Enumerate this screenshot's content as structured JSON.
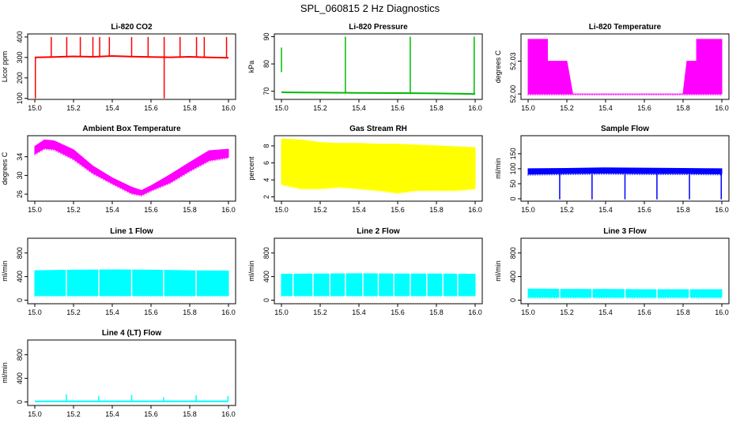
{
  "figure": {
    "title": "SPL_060815  2 Hz Diagnostics"
  },
  "chart_data": [
    {
      "type": "line",
      "title": "Li-820 CO2",
      "ylabel": "Licor ppm",
      "color": "#ff0000",
      "xlim": [
        15.0,
        16.0
      ],
      "xticks": [
        "15.0",
        "15.2",
        "15.4",
        "15.6",
        "15.8",
        "16.0"
      ],
      "ylim": [
        95,
        415
      ],
      "yticks": [
        "100",
        "200",
        "300",
        "400"
      ],
      "series": [
        {
          "name": "CO2",
          "x": [
            15.0,
            15.1,
            15.2,
            15.3,
            15.4,
            15.5,
            15.6,
            15.7,
            15.8,
            15.9,
            16.0
          ],
          "values": [
            300,
            302,
            305,
            303,
            307,
            304,
            302,
            301,
            303,
            300,
            298
          ]
        }
      ],
      "spikes": [
        {
          "x": 15.003,
          "from": 100,
          "to": 300
        },
        {
          "x": 15.085,
          "to": 400
        },
        {
          "x": 15.165,
          "to": 400
        },
        {
          "x": 15.235,
          "to": 400
        },
        {
          "x": 15.3,
          "to": 400
        },
        {
          "x": 15.335,
          "to": 400
        },
        {
          "x": 15.385,
          "to": 400
        },
        {
          "x": 15.5,
          "to": 400
        },
        {
          "x": 15.585,
          "to": 400
        },
        {
          "x": 15.668,
          "to": 400
        },
        {
          "x": 15.668,
          "from": 100,
          "to": 300
        },
        {
          "x": 15.75,
          "to": 400
        },
        {
          "x": 15.835,
          "to": 400
        },
        {
          "x": 15.875,
          "to": 400
        },
        {
          "x": 15.99,
          "to": 400
        }
      ]
    },
    {
      "type": "line",
      "title": "Li-820 Pressure",
      "ylabel": "kPa",
      "color": "#00bb00",
      "xlim": [
        15.0,
        16.0
      ],
      "xticks": [
        "15.0",
        "15.2",
        "15.4",
        "15.6",
        "15.8",
        "16.0"
      ],
      "ylim": [
        67,
        91
      ],
      "yticks": [
        "70",
        "80",
        "90"
      ],
      "series": [
        {
          "name": "Pressure",
          "x": [
            15.0,
            15.2,
            15.4,
            15.6,
            15.8,
            16.0
          ],
          "values": [
            69.6,
            69.5,
            69.4,
            69.3,
            69.2,
            69.0
          ]
        }
      ],
      "spikes": [
        {
          "x": 15.0,
          "from": 77,
          "to": 86
        },
        {
          "x": 15.33,
          "from": 69.5,
          "to": 90
        },
        {
          "x": 15.665,
          "from": 69.4,
          "to": 90
        },
        {
          "x": 15.995,
          "from": 69.0,
          "to": 90
        }
      ]
    },
    {
      "type": "band",
      "title": "Li-820 Temperature",
      "ylabel": "degrees C",
      "color": "#ff00ff",
      "xlim": [
        15.0,
        16.0
      ],
      "xticks": [
        "15.0",
        "15.2",
        "15.4",
        "15.6",
        "15.8",
        "16.0"
      ],
      "ylim": [
        51.995,
        52.055
      ],
      "yticks": [
        "52.00",
        "52.03"
      ],
      "series": [
        {
          "name": "Temperature",
          "x": [
            15.0,
            15.07,
            15.07,
            15.1,
            15.1,
            15.13,
            15.2,
            15.2,
            15.23,
            15.8,
            15.82,
            15.82,
            15.87,
            15.87,
            16.0
          ],
          "lo": [
            52.0,
            52.0,
            52.0,
            52.0,
            52.0,
            52.0,
            52.0,
            52.0,
            52.0,
            52.0,
            52.0,
            52.0,
            52.0,
            52.0,
            52.0
          ],
          "hi": [
            52.05,
            52.05,
            52.05,
            52.05,
            52.03,
            52.03,
            52.03,
            52.03,
            52.0,
            52.0,
            52.03,
            52.03,
            52.03,
            52.05,
            52.05
          ]
        }
      ]
    },
    {
      "type": "band",
      "title": "Ambient Box Temperature",
      "ylabel": "degrees C",
      "color": "#ff00ff",
      "xlim": [
        15.0,
        16.0
      ],
      "xticks": [
        "15.0",
        "15.2",
        "15.4",
        "15.6",
        "15.8",
        "16.0"
      ],
      "ylim": [
        24.5,
        38.5
      ],
      "yticks": [
        "26",
        "30",
        "34"
      ],
      "series": [
        {
          "name": "Ambient",
          "x": [
            15.0,
            15.05,
            15.1,
            15.2,
            15.3,
            15.4,
            15.5,
            15.55,
            15.6,
            15.7,
            15.8,
            15.9,
            16.0
          ],
          "lo": [
            34.6,
            35.8,
            35.6,
            33.5,
            30.5,
            28.3,
            26.2,
            25.8,
            26.8,
            28.5,
            31.0,
            33.2,
            33.9
          ],
          "hi": [
            36.2,
            37.6,
            37.4,
            35.5,
            32.0,
            29.5,
            27.5,
            26.8,
            27.8,
            30.2,
            32.8,
            35.3,
            35.6
          ]
        }
      ]
    },
    {
      "type": "band",
      "title": "Gas Stream RH",
      "ylabel": "percent",
      "color": "#ffff00",
      "xlim": [
        15.0,
        16.0
      ],
      "xticks": [
        "15.0",
        "15.2",
        "15.4",
        "15.6",
        "15.8",
        "16.0"
      ],
      "ylim": [
        1.5,
        9.2
      ],
      "yticks": [
        "2",
        "4",
        "6",
        "8"
      ],
      "series": [
        {
          "name": "RH",
          "x": [
            15.0,
            15.1,
            15.2,
            15.3,
            15.4,
            15.5,
            15.6,
            15.7,
            15.8,
            15.9,
            16.0
          ],
          "lo": [
            3.5,
            3.0,
            3.0,
            3.2,
            3.0,
            2.8,
            2.5,
            2.8,
            2.8,
            2.8,
            3.0
          ],
          "hi": [
            8.8,
            8.7,
            8.4,
            8.3,
            8.3,
            8.2,
            8.2,
            8.1,
            8.0,
            7.9,
            7.8
          ]
        }
      ]
    },
    {
      "type": "band",
      "title": "Sample Flow",
      "ylabel": "ml/min",
      "color": "#0000ff",
      "xlim": [
        15.0,
        16.0
      ],
      "xticks": [
        "15.0",
        "15.2",
        "15.4",
        "15.6",
        "15.8",
        "16.0"
      ],
      "ylim": [
        -8,
        210
      ],
      "yticks": [
        "0",
        "50",
        "100",
        "150"
      ],
      "series": [
        {
          "name": "Sample Flow",
          "x": [
            15.0,
            15.2,
            15.4,
            15.6,
            15.8,
            16.0
          ],
          "lo": [
            82,
            84,
            85,
            84,
            84,
            83
          ],
          "hi": [
            100,
            101,
            103,
            102,
            101,
            100
          ]
        }
      ],
      "dips": [
        {
          "x": 15.163,
          "to": -2
        },
        {
          "x": 15.33,
          "to": -2
        },
        {
          "x": 15.5,
          "to": -2
        },
        {
          "x": 15.665,
          "to": -2
        },
        {
          "x": 15.833,
          "to": -2
        },
        {
          "x": 15.997,
          "to": -2
        }
      ]
    },
    {
      "type": "band",
      "title": "Line 1 Flow",
      "ylabel": "ml/min",
      "color": "#00ffff",
      "xlim": [
        15.0,
        16.0
      ],
      "xticks": [
        "15.0",
        "15.2",
        "15.4",
        "15.6",
        "15.8",
        "16.0"
      ],
      "ylim": [
        -60,
        1050
      ],
      "yticks": [
        "0",
        "400",
        "800"
      ],
      "series": [
        {
          "name": "Line 1",
          "x": [
            15.0,
            15.2,
            15.4,
            15.6,
            15.8,
            16.0
          ],
          "lo": [
            80,
            80,
            80,
            80,
            80,
            80
          ],
          "hi": [
            500,
            510,
            515,
            510,
            500,
            495
          ]
        }
      ],
      "gaps": [
        15.163,
        15.33,
        15.5,
        15.665,
        15.833
      ]
    },
    {
      "type": "band",
      "title": "Line 2 Flow",
      "ylabel": "ml/min",
      "color": "#00ffff",
      "xlim": [
        15.0,
        16.0
      ],
      "xticks": [
        "15.0",
        "15.2",
        "15.4",
        "15.6",
        "15.8",
        "16.0"
      ],
      "ylim": [
        -60,
        1050
      ],
      "yticks": [
        "0",
        "400",
        "800"
      ],
      "series": [
        {
          "name": "Line 2",
          "x": [
            15.0,
            15.2,
            15.4,
            15.6,
            15.8,
            16.0
          ],
          "lo": [
            80,
            80,
            80,
            80,
            80,
            80
          ],
          "hi": [
            440,
            445,
            450,
            445,
            445,
            440
          ]
        }
      ],
      "gaps": [
        15.06,
        15.163,
        15.25,
        15.33,
        15.42,
        15.5,
        15.58,
        15.665,
        15.75,
        15.833,
        15.91
      ]
    },
    {
      "type": "band",
      "title": "Line 3 Flow",
      "ylabel": "ml/min",
      "color": "#00ffff",
      "xlim": [
        15.0,
        16.0
      ],
      "xticks": [
        "15.0",
        "15.2",
        "15.4",
        "15.6",
        "15.8",
        "16.0"
      ],
      "ylim": [
        -60,
        1050
      ],
      "yticks": [
        "0",
        "400",
        "800"
      ],
      "series": [
        {
          "name": "Line 3",
          "x": [
            15.0,
            15.2,
            15.4,
            15.6,
            15.8,
            16.0
          ],
          "lo": [
            50,
            50,
            50,
            50,
            50,
            50
          ],
          "hi": [
            190,
            185,
            185,
            180,
            180,
            180
          ]
        }
      ],
      "gaps": [
        15.163,
        15.33,
        15.5,
        15.665,
        15.833
      ]
    },
    {
      "type": "line",
      "title": "Line 4 (LT) Flow",
      "ylabel": "ml/min",
      "color": "#00ffff",
      "xlim": [
        15.0,
        16.0
      ],
      "xticks": [
        "15.0",
        "15.2",
        "15.4",
        "15.6",
        "15.8",
        "16.0"
      ],
      "ylim": [
        -60,
        1050
      ],
      "yticks": [
        "0",
        "400",
        "800"
      ],
      "series": [
        {
          "name": "Line 4",
          "x": [
            15.0,
            16.0
          ],
          "values": [
            10,
            10
          ]
        }
      ],
      "spikes": [
        {
          "x": 15.163,
          "to": 130
        },
        {
          "x": 15.33,
          "to": 100
        },
        {
          "x": 15.5,
          "to": 120
        },
        {
          "x": 15.665,
          "to": 80
        },
        {
          "x": 15.833,
          "to": 110
        },
        {
          "x": 15.997,
          "to": 100
        }
      ]
    }
  ]
}
